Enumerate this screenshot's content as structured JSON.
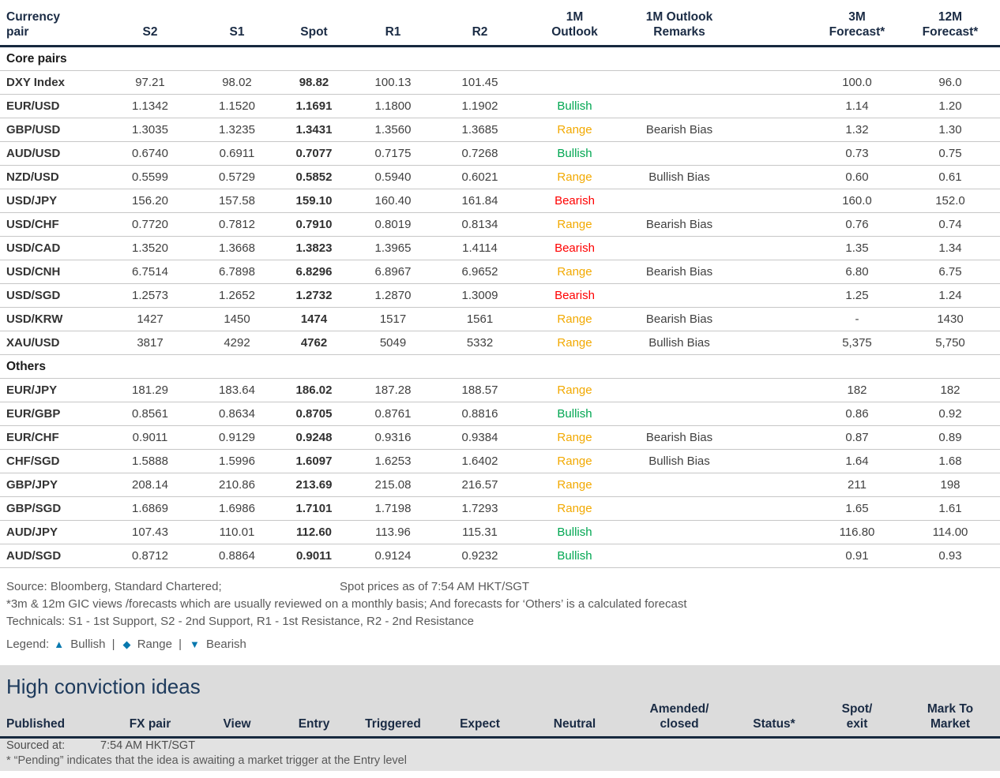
{
  "colors": {
    "bullish": "#00a651",
    "range": "#f2a900",
    "bearish": "#ff0000",
    "legend_icon_blue": "#0878ae",
    "header_navy": "#17293f",
    "section_band_gray": "#dcdcdc"
  },
  "table": {
    "header_cells": [
      {
        "key": "currency-pair",
        "lines": [
          "Currency",
          "pair"
        ],
        "align": "left"
      },
      {
        "key": "s2",
        "lines": [
          "S2"
        ],
        "align": "center"
      },
      {
        "key": "s1",
        "lines": [
          "S1"
        ],
        "align": "center"
      },
      {
        "key": "spot",
        "lines": [
          "Spot"
        ],
        "align": "center"
      },
      {
        "key": "r1",
        "lines": [
          "R1"
        ],
        "align": "center"
      },
      {
        "key": "r2",
        "lines": [
          "R2"
        ],
        "align": "center"
      },
      {
        "key": "1m-outlook",
        "lines": [
          "1M",
          "Outlook"
        ],
        "align": "center"
      },
      {
        "key": "1m-outlook-remarks",
        "lines": [
          "1M Outlook",
          "Remarks"
        ],
        "align": "center"
      },
      {
        "key": "spacer",
        "lines": [],
        "align": "center"
      },
      {
        "key": "3m-forecast",
        "lines": [
          "3M",
          "Forecast*"
        ],
        "align": "center"
      },
      {
        "key": "12m-forecast",
        "lines": [
          "12M",
          "Forecast*"
        ],
        "align": "center"
      }
    ],
    "sections": [
      {
        "title": "Core pairs",
        "rows": [
          {
            "pair": "DXY Index",
            "s2": "97.21",
            "s1": "98.02",
            "spot": "98.82",
            "r1": "100.13",
            "r2": "101.45",
            "outlook": "",
            "remarks": "",
            "f3m": "100.0",
            "f12m": "96.0"
          },
          {
            "pair": "EUR/USD",
            "s2": "1.1342",
            "s1": "1.1520",
            "spot": "1.1691",
            "r1": "1.1800",
            "r2": "1.1902",
            "outlook": "Bullish",
            "remarks": "",
            "f3m": "1.14",
            "f12m": "1.20"
          },
          {
            "pair": "GBP/USD",
            "s2": "1.3035",
            "s1": "1.3235",
            "spot": "1.3431",
            "r1": "1.3560",
            "r2": "1.3685",
            "outlook": "Range",
            "remarks": "Bearish Bias",
            "f3m": "1.32",
            "f12m": "1.30"
          },
          {
            "pair": "AUD/USD",
            "s2": "0.6740",
            "s1": "0.6911",
            "spot": "0.7077",
            "r1": "0.7175",
            "r2": "0.7268",
            "outlook": "Bullish",
            "remarks": "",
            "f3m": "0.73",
            "f12m": "0.75"
          },
          {
            "pair": "NZD/USD",
            "s2": "0.5599",
            "s1": "0.5729",
            "spot": "0.5852",
            "r1": "0.5940",
            "r2": "0.6021",
            "outlook": "Range",
            "remarks": "Bullish Bias",
            "f3m": "0.60",
            "f12m": "0.61"
          },
          {
            "pair": "USD/JPY",
            "s2": "156.20",
            "s1": "157.58",
            "spot": "159.10",
            "r1": "160.40",
            "r2": "161.84",
            "outlook": "Bearish",
            "remarks": "",
            "f3m": "160.0",
            "f12m": "152.0"
          },
          {
            "pair": "USD/CHF",
            "s2": "0.7720",
            "s1": "0.7812",
            "spot": "0.7910",
            "r1": "0.8019",
            "r2": "0.8134",
            "outlook": "Range",
            "remarks": "Bearish Bias",
            "f3m": "0.76",
            "f12m": "0.74"
          },
          {
            "pair": "USD/CAD",
            "s2": "1.3520",
            "s1": "1.3668",
            "spot": "1.3823",
            "r1": "1.3965",
            "r2": "1.4114",
            "outlook": "Bearish",
            "remarks": "",
            "f3m": "1.35",
            "f12m": "1.34"
          },
          {
            "pair": "USD/CNH",
            "s2": "6.7514",
            "s1": "6.7898",
            "spot": "6.8296",
            "r1": "6.8967",
            "r2": "6.9652",
            "outlook": "Range",
            "remarks": "Bearish Bias",
            "f3m": "6.80",
            "f12m": "6.75"
          },
          {
            "pair": "USD/SGD",
            "s2": "1.2573",
            "s1": "1.2652",
            "spot": "1.2732",
            "r1": "1.2870",
            "r2": "1.3009",
            "outlook": "Bearish",
            "remarks": "",
            "f3m": "1.25",
            "f12m": "1.24"
          },
          {
            "pair": "USD/KRW",
            "s2": "1427",
            "s1": "1450",
            "spot": "1474",
            "r1": "1517",
            "r2": "1561",
            "outlook": "Range",
            "remarks": "Bearish Bias",
            "f3m": "-",
            "f12m": "1430"
          },
          {
            "pair": "XAU/USD",
            "s2": "3817",
            "s1": "4292",
            "spot": "4762",
            "r1": "5049",
            "r2": "5332",
            "outlook": "Range",
            "remarks": "Bullish Bias",
            "f3m": "5,375",
            "f12m": "5,750"
          }
        ]
      },
      {
        "title": "Others",
        "rows": [
          {
            "pair": "EUR/JPY",
            "s2": "181.29",
            "s1": "183.64",
            "spot": "186.02",
            "r1": "187.28",
            "r2": "188.57",
            "outlook": "Range",
            "remarks": "",
            "f3m": "182",
            "f12m": "182"
          },
          {
            "pair": "EUR/GBP",
            "s2": "0.8561",
            "s1": "0.8634",
            "spot": "0.8705",
            "r1": "0.8761",
            "r2": "0.8816",
            "outlook": "Bullish",
            "remarks": "",
            "f3m": "0.86",
            "f12m": "0.92"
          },
          {
            "pair": "EUR/CHF",
            "s2": "0.9011",
            "s1": "0.9129",
            "spot": "0.9248",
            "r1": "0.9316",
            "r2": "0.9384",
            "outlook": "Range",
            "remarks": "Bearish Bias",
            "f3m": "0.87",
            "f12m": "0.89"
          },
          {
            "pair": "CHF/SGD",
            "s2": "1.5888",
            "s1": "1.5996",
            "spot": "1.6097",
            "r1": "1.6253",
            "r2": "1.6402",
            "outlook": "Range",
            "remarks": "Bullish Bias",
            "f3m": "1.64",
            "f12m": "1.68"
          },
          {
            "pair": "GBP/JPY",
            "s2": "208.14",
            "s1": "210.86",
            "spot": "213.69",
            "r1": "215.08",
            "r2": "216.57",
            "outlook": "Range",
            "remarks": "",
            "f3m": "211",
            "f12m": "198"
          },
          {
            "pair": "GBP/SGD",
            "s2": "1.6869",
            "s1": "1.6986",
            "spot": "1.7101",
            "r1": "1.7198",
            "r2": "1.7293",
            "outlook": "Range",
            "remarks": "",
            "f3m": "1.65",
            "f12m": "1.61"
          },
          {
            "pair": "AUD/JPY",
            "s2": "107.43",
            "s1": "110.01",
            "spot": "112.60",
            "r1": "113.96",
            "r2": "115.31",
            "outlook": "Bullish",
            "remarks": "",
            "f3m": "116.80",
            "f12m": "114.00"
          },
          {
            "pair": "AUD/SGD",
            "s2": "0.8712",
            "s1": "0.8864",
            "spot": "0.9011",
            "r1": "0.9124",
            "r2": "0.9232",
            "outlook": "Bullish",
            "remarks": "",
            "f3m": "0.91",
            "f12m": "0.93"
          }
        ]
      }
    ]
  },
  "footnotes": {
    "source": "Source: Bloomberg, Standard Chartered;",
    "spot_asof": "Spot prices as of  7:54 AM HKT/SGT",
    "forecast_note": "*3m & 12m GIC views /forecasts which are usually reviewed on a monthly basis; And forecasts for ‘Others’ is a calculated forecast",
    "technicals": "Technicals: S1 - 1st Support, S2 - 2nd Support, R1 - 1st Resistance, R2 - 2nd Resistance"
  },
  "legend": {
    "label": "Legend:",
    "separator": "|",
    "items": [
      {
        "icon": "bullish-triangle-up-icon",
        "symbol": "▲",
        "name": "Bullish"
      },
      {
        "icon": "range-diamond-icon",
        "symbol": "◆",
        "name": "Range"
      },
      {
        "icon": "bearish-triangle-down-icon",
        "symbol": "▼",
        "name": "Bearish"
      }
    ]
  },
  "high_conviction": {
    "title": "High conviction ideas",
    "header_cells": [
      {
        "key": "published",
        "lines": [
          "Published"
        ],
        "align": "left"
      },
      {
        "key": "fx-pair",
        "lines": [
          "FX pair"
        ],
        "align": "center"
      },
      {
        "key": "view",
        "lines": [
          "View"
        ],
        "align": "center"
      },
      {
        "key": "entry",
        "lines": [
          "Entry"
        ],
        "align": "center"
      },
      {
        "key": "triggered",
        "lines": [
          "Triggered"
        ],
        "align": "center"
      },
      {
        "key": "expect",
        "lines": [
          "Expect"
        ],
        "align": "center"
      },
      {
        "key": "neutral",
        "lines": [
          "Neutral"
        ],
        "align": "center"
      },
      {
        "key": "amended-closed",
        "lines": [
          "Amended/",
          "closed"
        ],
        "align": "center"
      },
      {
        "key": "status",
        "lines": [
          "Status*"
        ],
        "align": "center"
      },
      {
        "key": "spot-exit",
        "lines": [
          "Spot/",
          "exit"
        ],
        "align": "center"
      },
      {
        "key": "mark-to-market",
        "lines": [
          "Mark To",
          "Market"
        ],
        "align": "center"
      }
    ],
    "sourced_at_label": "Sourced at:",
    "sourced_at_time": "7:54 AM HKT/SGT",
    "pending_note": "* “Pending” indicates that the idea is awaiting a market trigger at the Entry level"
  }
}
